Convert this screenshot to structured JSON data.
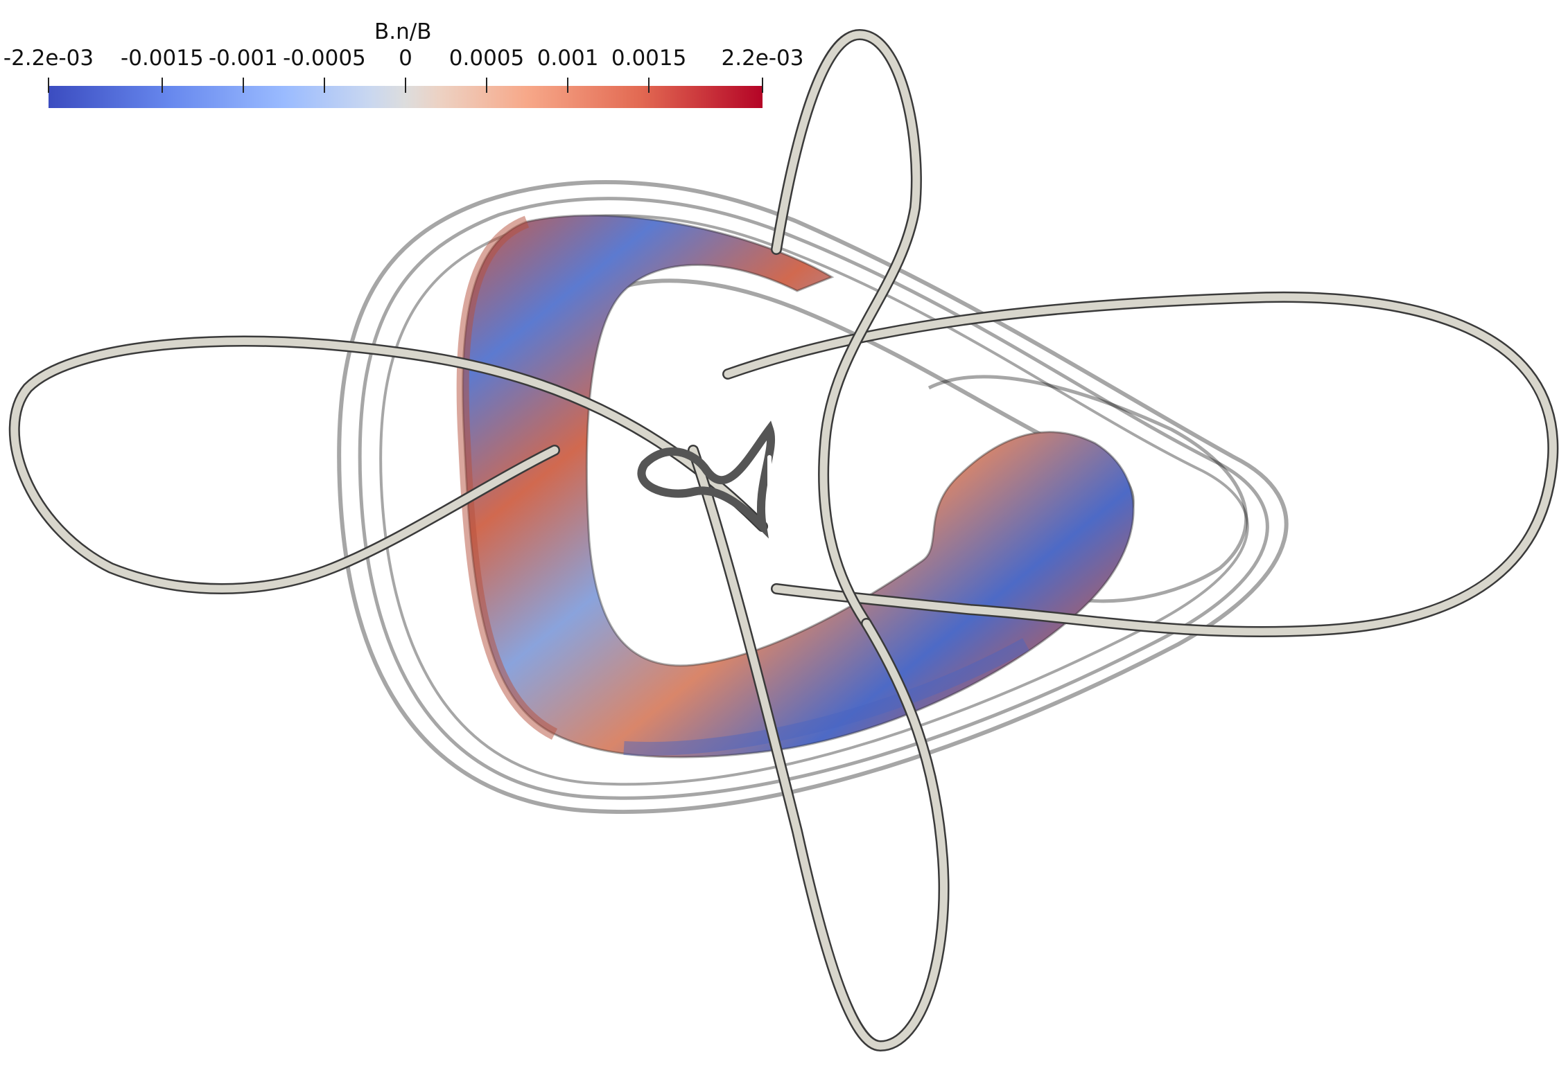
{
  "colorbar": {
    "title": "B.n/B",
    "ticks": [
      "-2.2e-03",
      "-0.0015",
      "-0.001",
      "-0.0005",
      "0",
      "0.0005",
      "0.001",
      "0.0015",
      "2.2e-03"
    ],
    "tick_values": [
      -0.0022,
      -0.0015,
      -0.001,
      -0.0005,
      0,
      0.0005,
      0.001,
      0.0015,
      0.0022
    ],
    "range": [
      -0.0022,
      0.0022
    ],
    "colors": [
      "#3b4cc0",
      "#dddddd",
      "#b40426"
    ]
  },
  "scene": {
    "background": "#ffffff",
    "coil_color": "#d8d6cc",
    "coil_shadow": "#555555",
    "mesh_color": "#000000"
  }
}
